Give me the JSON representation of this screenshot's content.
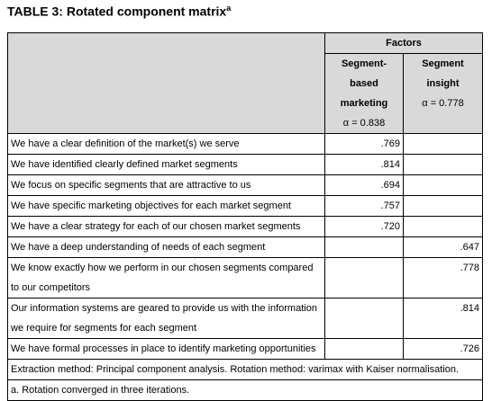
{
  "title": "TABLE 3: Rotated component matrix",
  "title_note": "a",
  "table": {
    "group_header": "Factors",
    "columns": [
      {
        "name_lines": [
          "Segment-based",
          "marketing"
        ],
        "alpha": "α = 0.838"
      },
      {
        "name_lines": [
          "Segment",
          "insight"
        ],
        "alpha": "α = 0.778"
      }
    ],
    "rows": [
      {
        "item": "We have a clear definition of the market(s) we serve",
        "loadings": [
          ".769",
          null
        ]
      },
      {
        "item": "We have identified clearly defined market segments",
        "loadings": [
          ".814",
          null
        ]
      },
      {
        "item": "We focus on specific segments that are attractive to us",
        "loadings": [
          ".694",
          null
        ]
      },
      {
        "item": "We have specific marketing objectives for each market segment",
        "loadings": [
          ".757",
          null
        ]
      },
      {
        "item": "We have a clear strategy for each of our chosen market segments",
        "loadings": [
          ".720",
          null
        ]
      },
      {
        "item": "We have a deep understanding of needs of each segment",
        "loadings": [
          null,
          ".647"
        ]
      },
      {
        "item": "We know exactly how we perform in our chosen segments compared to our competitors",
        "loadings": [
          null,
          ".778"
        ]
      },
      {
        "item": "Our information systems are geared to provide us with the information we require for segments for each segment",
        "loadings": [
          null,
          ".814"
        ]
      },
      {
        "item": "We have formal processes in place to identify marketing opportunities",
        "loadings": [
          null,
          ".726"
        ]
      }
    ],
    "footnotes": [
      "Extraction method: Principal component analysis.  Rotation method: varimax with Kaiser normalisation.",
      "a. Rotation converged in three iterations."
    ]
  }
}
